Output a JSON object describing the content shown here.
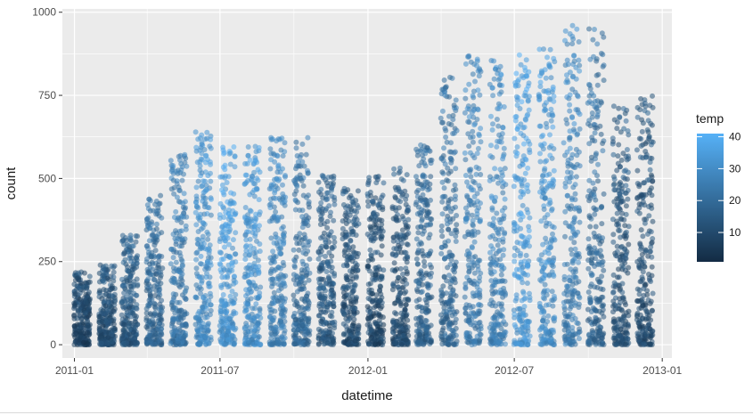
{
  "chart_data": {
    "type": "scatter",
    "title": "",
    "xlabel": "datetime",
    "ylabel": "count",
    "x_axis": {
      "scale": "date",
      "range": [
        "2010-12-17",
        "2013-01-13"
      ],
      "ticks": [
        "2011-01-01",
        "2011-07-01",
        "2012-01-01",
        "2012-07-01",
        "2013-01-01"
      ],
      "tick_labels": [
        "2011-01",
        "2011-07",
        "2012-01",
        "2012-07",
        "2013-01"
      ]
    },
    "y_axis": {
      "range": [
        -40,
        1010
      ],
      "ticks": [
        0,
        250,
        500,
        750,
        1000
      ],
      "tick_labels": [
        "0",
        "250",
        "500",
        "750",
        "1000"
      ]
    },
    "grid": true,
    "point_style": "jittered semi-transparent points, one vertical band of hourly counts per month (days 1–19)",
    "colors": {
      "panel_background": "#ebebeb",
      "gridline": "#ffffff",
      "low": "#132b43",
      "high": "#56b1f7"
    },
    "legend": {
      "title": "temp",
      "position": "right",
      "type": "colorbar",
      "range": [
        0.8,
        41
      ],
      "breaks": [
        10,
        20,
        30,
        40
      ],
      "break_labels": [
        "10",
        "20",
        "30",
        "40"
      ]
    },
    "series": [
      {
        "month": "2011-01",
        "max_count": 220,
        "mean_temp": 9
      },
      {
        "month": "2011-02",
        "max_count": 240,
        "mean_temp": 12
      },
      {
        "month": "2011-03",
        "max_count": 330,
        "mean_temp": 15
      },
      {
        "month": "2011-04",
        "max_count": 450,
        "mean_temp": 19
      },
      {
        "month": "2011-05",
        "max_count": 610,
        "mean_temp": 24
      },
      {
        "month": "2011-06",
        "max_count": 640,
        "mean_temp": 30
      },
      {
        "month": "2011-07",
        "max_count": 600,
        "mean_temp": 33
      },
      {
        "month": "2011-08",
        "max_count": 600,
        "mean_temp": 31
      },
      {
        "month": "2011-09",
        "max_count": 630,
        "mean_temp": 27
      },
      {
        "month": "2011-10",
        "max_count": 625,
        "mean_temp": 21
      },
      {
        "month": "2011-11",
        "max_count": 520,
        "mean_temp": 15
      },
      {
        "month": "2011-12",
        "max_count": 470,
        "mean_temp": 12
      },
      {
        "month": "2012-01",
        "max_count": 510,
        "mean_temp": 11
      },
      {
        "month": "2012-02",
        "max_count": 540,
        "mean_temp": 12
      },
      {
        "month": "2012-03",
        "max_count": 610,
        "mean_temp": 18
      },
      {
        "month": "2012-04",
        "max_count": 820,
        "mean_temp": 20
      },
      {
        "month": "2012-05",
        "max_count": 870,
        "mean_temp": 26
      },
      {
        "month": "2012-06",
        "max_count": 870,
        "mean_temp": 28
      },
      {
        "month": "2012-07",
        "max_count": 880,
        "mean_temp": 34
      },
      {
        "month": "2012-08",
        "max_count": 890,
        "mean_temp": 31
      },
      {
        "month": "2012-09",
        "max_count": 980,
        "mean_temp": 27
      },
      {
        "month": "2012-10",
        "max_count": 950,
        "mean_temp": 20
      },
      {
        "month": "2012-11",
        "max_count": 720,
        "mean_temp": 13
      },
      {
        "month": "2012-12",
        "max_count": 760,
        "mean_temp": 12
      }
    ]
  }
}
